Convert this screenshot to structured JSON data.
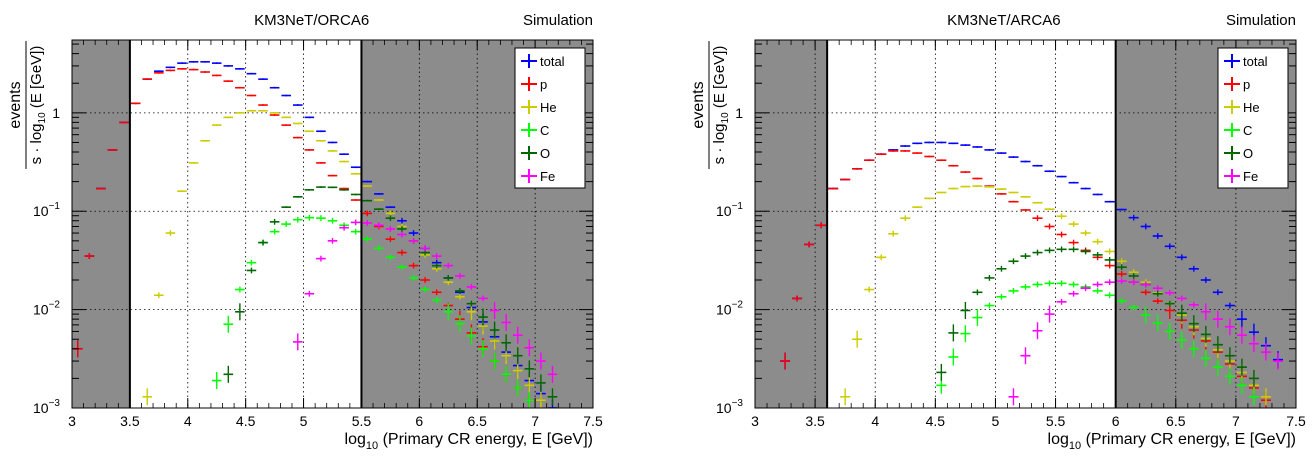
{
  "chart_data": [
    {
      "type": "scatter",
      "title": "KM3NeT/ORCA6",
      "label": "Simulation",
      "xlabel_main": "log",
      "xlabel_sub": "10",
      "xlabel_rest": " (Primary CR energy, E [GeV])",
      "ylabel_num": "events",
      "ylabel_den_a": "s · log",
      "ylabel_den_sub": "10",
      "ylabel_den_b": "(E [GeV])",
      "x_log_scale": false,
      "y_log_scale": true,
      "xlim": [
        3,
        7.5
      ],
      "ylim": [
        0.001,
        5.5
      ],
      "x_ticks": [
        {
          "v": 3,
          "label": "3"
        },
        {
          "v": 3.5,
          "label": "3.5"
        },
        {
          "v": 4,
          "label": "4"
        },
        {
          "v": 4.5,
          "label": "4.5"
        },
        {
          "v": 5,
          "label": "5"
        },
        {
          "v": 5.5,
          "label": "5.5"
        },
        {
          "v": 6,
          "label": "6"
        },
        {
          "v": 6.5,
          "label": "6.5"
        },
        {
          "v": 7,
          "label": "7"
        },
        {
          "v": 7.5,
          "label": "7.5"
        }
      ],
      "y_ticks": [
        {
          "v": 0.001,
          "base": "10",
          "exp": "−3"
        },
        {
          "v": 0.01,
          "base": "10",
          "exp": "−2"
        },
        {
          "v": 0.1,
          "base": "10",
          "exp": "−1"
        },
        {
          "v": 1,
          "label": "1"
        }
      ],
      "shaded_regions": [
        [
          3,
          3.5
        ],
        [
          5.5,
          7.5
        ]
      ],
      "grid": true,
      "legend_position": "top-right",
      "series": [
        {
          "name": "total",
          "color": "#0000ff",
          "y": [
            0.004,
            0.035,
            0.17,
            0.42,
            0.8,
            1.25,
            2.2,
            2.65,
            2.9,
            3.2,
            3.3,
            3.3,
            3.2,
            3.0,
            2.8,
            2.5,
            2.2,
            1.8,
            1.5,
            1.2,
            0.9,
            0.65,
            0.5,
            0.38,
            0.28,
            0.2,
            0.15,
            0.11,
            0.08,
            0.06,
            0.042,
            0.03,
            0.021,
            0.015,
            0.0105,
            0.0075,
            0.0053,
            0.0037,
            0.0027,
            0.0019,
            0.0014,
            0.001
          ]
        },
        {
          "name": "p",
          "color": "#ff0000",
          "y": [
            0.004,
            0.035,
            0.17,
            0.42,
            0.8,
            1.25,
            2.2,
            2.55,
            2.7,
            2.8,
            2.75,
            2.6,
            2.4,
            2.1,
            1.8,
            1.5,
            1.2,
            0.95,
            0.75,
            0.56,
            0.42,
            0.31,
            0.23,
            0.17,
            0.13,
            0.095,
            0.07,
            0.052,
            0.038,
            0.028,
            0.02,
            0.015,
            0.011,
            0.008,
            0.0058,
            0.0042,
            0.003,
            0.0022,
            0.0016,
            0.0012
          ]
        },
        {
          "name": "He",
          "color": "#cccc00",
          "y": [
            null,
            null,
            null,
            null,
            null,
            null,
            0.0013,
            0.014,
            0.06,
            0.16,
            0.31,
            0.52,
            0.75,
            0.9,
            1.0,
            1.05,
            1.05,
            1.0,
            0.9,
            0.78,
            0.65,
            0.52,
            0.41,
            0.32,
            0.24,
            0.18,
            0.13,
            0.095,
            0.07,
            0.05,
            0.036,
            0.026,
            0.019,
            0.0135,
            0.0095,
            0.0068,
            0.0048,
            0.0034,
            0.0024,
            0.0017,
            0.0012
          ]
        },
        {
          "name": "C",
          "color": "#00ff00",
          "y": [
            null,
            null,
            null,
            null,
            null,
            null,
            null,
            null,
            null,
            null,
            null,
            null,
            0.0019,
            0.0071,
            0.016,
            0.03,
            0.048,
            0.062,
            0.074,
            0.082,
            0.086,
            0.085,
            0.08,
            0.072,
            0.062,
            0.052,
            0.042,
            0.034,
            0.027,
            0.021,
            0.016,
            0.0125,
            0.0095,
            0.0072,
            0.0054,
            0.004,
            0.003,
            0.0022,
            0.0016,
            0.0012
          ]
        },
        {
          "name": "O",
          "color": "#006600",
          "y": [
            null,
            null,
            null,
            null,
            null,
            null,
            null,
            null,
            null,
            null,
            null,
            null,
            null,
            0.0022,
            0.0095,
            0.025,
            0.048,
            0.078,
            0.11,
            0.14,
            0.165,
            0.176,
            0.175,
            0.165,
            0.148,
            0.128,
            0.105,
            0.085,
            0.066,
            0.05,
            0.038,
            0.028,
            0.021,
            0.0155,
            0.0115,
            0.0084,
            0.0062,
            0.0046,
            0.0034,
            0.0025,
            0.0018,
            0.0013
          ]
        },
        {
          "name": "Fe",
          "color": "#ff00ff",
          "y": [
            null,
            null,
            null,
            null,
            null,
            null,
            null,
            null,
            null,
            null,
            null,
            null,
            null,
            null,
            null,
            null,
            null,
            null,
            null,
            0.0047,
            0.0145,
            0.033,
            0.05,
            0.068,
            0.077,
            0.076,
            0.072,
            0.066,
            0.058,
            0.05,
            0.042,
            0.035,
            0.028,
            0.022,
            0.017,
            0.013,
            0.0098,
            0.0074,
            0.0055,
            0.0041,
            0.003,
            0.0022
          ]
        }
      ]
    },
    {
      "type": "scatter",
      "title": "KM3NeT/ARCA6",
      "label": "Simulation",
      "xlabel_main": "log",
      "xlabel_sub": "10",
      "xlabel_rest": " (Primary CR energy, E [GeV])",
      "ylabel_num": "events",
      "ylabel_den_a": "s · log",
      "ylabel_den_sub": "10",
      "ylabel_den_b": "(E [GeV])",
      "x_log_scale": false,
      "y_log_scale": true,
      "xlim": [
        3,
        7.5
      ],
      "ylim": [
        0.001,
        5.5
      ],
      "x_ticks": [
        {
          "v": 3,
          "label": "3"
        },
        {
          "v": 3.5,
          "label": "3.5"
        },
        {
          "v": 4,
          "label": "4"
        },
        {
          "v": 4.5,
          "label": "4.5"
        },
        {
          "v": 5,
          "label": "5"
        },
        {
          "v": 5.5,
          "label": "5.5"
        },
        {
          "v": 6,
          "label": "6"
        },
        {
          "v": 6.5,
          "label": "6.5"
        },
        {
          "v": 7,
          "label": "7"
        },
        {
          "v": 7.5,
          "label": "7.5"
        }
      ],
      "y_ticks": [
        {
          "v": 0.001,
          "base": "10",
          "exp": "−3"
        },
        {
          "v": 0.01,
          "base": "10",
          "exp": "−2"
        },
        {
          "v": 0.1,
          "base": "10",
          "exp": "−1"
        },
        {
          "v": 1,
          "label": "1"
        }
      ],
      "shaded_regions": [
        [
          3,
          3.6
        ],
        [
          6,
          7.5
        ]
      ],
      "grid": true,
      "legend_position": "top-right",
      "series": [
        {
          "name": "total",
          "color": "#0000ff",
          "y": [
            null,
            null,
            0.003,
            0.013,
            0.046,
            0.072,
            0.17,
            0.21,
            0.27,
            0.33,
            0.38,
            0.42,
            0.46,
            0.49,
            0.5,
            0.5,
            0.49,
            0.47,
            0.45,
            0.42,
            0.39,
            0.355,
            0.32,
            0.29,
            0.255,
            0.225,
            0.195,
            0.17,
            0.148,
            0.125,
            0.104,
            0.086,
            0.07,
            0.056,
            0.044,
            0.034,
            0.026,
            0.02,
            0.015,
            0.011,
            0.008,
            0.0059,
            0.0043,
            0.0031
          ]
        },
        {
          "name": "p",
          "color": "#ff0000",
          "y": [
            null,
            null,
            0.003,
            0.013,
            0.046,
            0.072,
            0.17,
            0.21,
            0.27,
            0.33,
            0.38,
            0.41,
            0.41,
            0.39,
            0.36,
            0.33,
            0.29,
            0.25,
            0.215,
            0.18,
            0.15,
            0.125,
            0.103,
            0.085,
            0.07,
            0.058,
            0.048,
            0.04,
            0.034,
            0.028,
            0.023,
            0.019,
            0.015,
            0.0122,
            0.0098,
            0.0078,
            0.0062,
            0.0048,
            0.0037,
            0.0028,
            0.0021,
            0.0016,
            0.0012
          ]
        },
        {
          "name": "He",
          "color": "#cccc00",
          "y": [
            null,
            null,
            null,
            null,
            null,
            null,
            null,
            0.0013,
            0.005,
            0.016,
            0.034,
            0.059,
            0.085,
            0.11,
            0.135,
            0.155,
            0.17,
            0.178,
            0.18,
            0.177,
            0.168,
            0.155,
            0.14,
            0.122,
            0.105,
            0.089,
            0.074,
            0.06,
            0.049,
            0.039,
            0.031,
            0.024,
            0.019,
            0.0148,
            0.0115,
            0.0088,
            0.0067,
            0.0051,
            0.0039,
            0.003,
            0.0023,
            0.0017,
            0.0013
          ]
        },
        {
          "name": "C",
          "color": "#00ff00",
          "y": [
            null,
            null,
            null,
            null,
            null,
            null,
            null,
            null,
            null,
            null,
            null,
            null,
            null,
            null,
            null,
            0.0017,
            0.0033,
            0.0057,
            0.0083,
            0.011,
            0.0135,
            0.0155,
            0.017,
            0.018,
            0.0185,
            0.0185,
            0.018,
            0.017,
            0.0155,
            0.014,
            0.0122,
            0.0105,
            0.0088,
            0.0073,
            0.006,
            0.0049,
            0.004,
            0.0032,
            0.0026,
            0.0021,
            0.0017,
            0.0013
          ]
        },
        {
          "name": "O",
          "color": "#006600",
          "y": [
            null,
            null,
            null,
            null,
            null,
            null,
            null,
            null,
            null,
            null,
            null,
            null,
            null,
            null,
            null,
            0.0023,
            0.0058,
            0.0098,
            0.015,
            0.021,
            0.026,
            0.031,
            0.035,
            0.038,
            0.04,
            0.041,
            0.041,
            0.039,
            0.036,
            0.032,
            0.027,
            0.022,
            0.018,
            0.0145,
            0.0115,
            0.0092,
            0.0072,
            0.0056,
            0.0044,
            0.0034,
            0.0026,
            0.002
          ]
        },
        {
          "name": "Fe",
          "color": "#ff00ff",
          "y": [
            null,
            null,
            null,
            null,
            null,
            null,
            null,
            null,
            null,
            null,
            null,
            null,
            null,
            null,
            null,
            null,
            null,
            null,
            null,
            null,
            null,
            0.0013,
            0.0034,
            0.0061,
            0.009,
            0.012,
            0.0145,
            0.0165,
            0.018,
            0.019,
            0.0195,
            0.019,
            0.018,
            0.0165,
            0.0148,
            0.013,
            0.0112,
            0.0095,
            0.008,
            0.0067,
            0.0055,
            0.0045,
            0.0037,
            0.003
          ]
        }
      ]
    }
  ]
}
